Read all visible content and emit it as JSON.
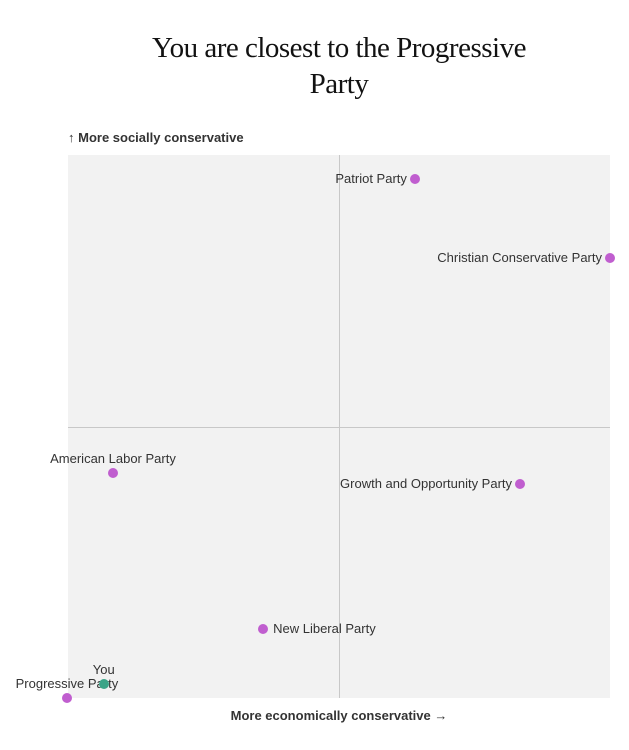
{
  "title": {
    "full": "You are closest to the Progressive Party",
    "line1": "You are closest to the Progressive",
    "line2": "Party"
  },
  "closest_party": "Progressive Party",
  "colors": {
    "party_dot": "#c05ecf",
    "you_dot": "#3aa487",
    "chart_background": "#f2f2f2",
    "gridline": "#c8c8c8",
    "label_text": "#333333",
    "title_text": "#121212"
  },
  "chart_data": {
    "type": "scatter",
    "title": "You are closest to the Progressive Party",
    "x_axis_label": "More economically conservative →",
    "y_axis_label": "↑ More socially conservative",
    "x_range": [
      0,
      1
    ],
    "y_range": [
      0,
      1
    ],
    "grid": "center-crosshair",
    "legend_position": "none",
    "points": [
      {
        "label": "Patriot Party",
        "x": 0.64,
        "y": 0.956,
        "color": "#c05ecf",
        "label_side": "left",
        "type": "party"
      },
      {
        "label": "Christian Conservative Party",
        "x": 1.0,
        "y": 0.81,
        "color": "#c05ecf",
        "label_side": "left",
        "type": "party"
      },
      {
        "label": "American Labor Party",
        "x": 0.083,
        "y": 0.414,
        "color": "#c05ecf",
        "label_side": "above",
        "type": "party"
      },
      {
        "label": "Growth and Opportunity Party",
        "x": 0.834,
        "y": 0.394,
        "color": "#c05ecf",
        "label_side": "left",
        "type": "party"
      },
      {
        "label": "New Liberal Party",
        "x": 0.36,
        "y": 0.127,
        "color": "#c05ecf",
        "label_side": "right",
        "type": "party"
      },
      {
        "label": "Progressive Party",
        "x": -0.002,
        "y": 0.0,
        "color": "#c05ecf",
        "label_side": "above",
        "type": "party"
      },
      {
        "label": "You",
        "x": 0.066,
        "y": 0.026,
        "color": "#3aa487",
        "label_side": "above",
        "type": "you"
      }
    ]
  }
}
